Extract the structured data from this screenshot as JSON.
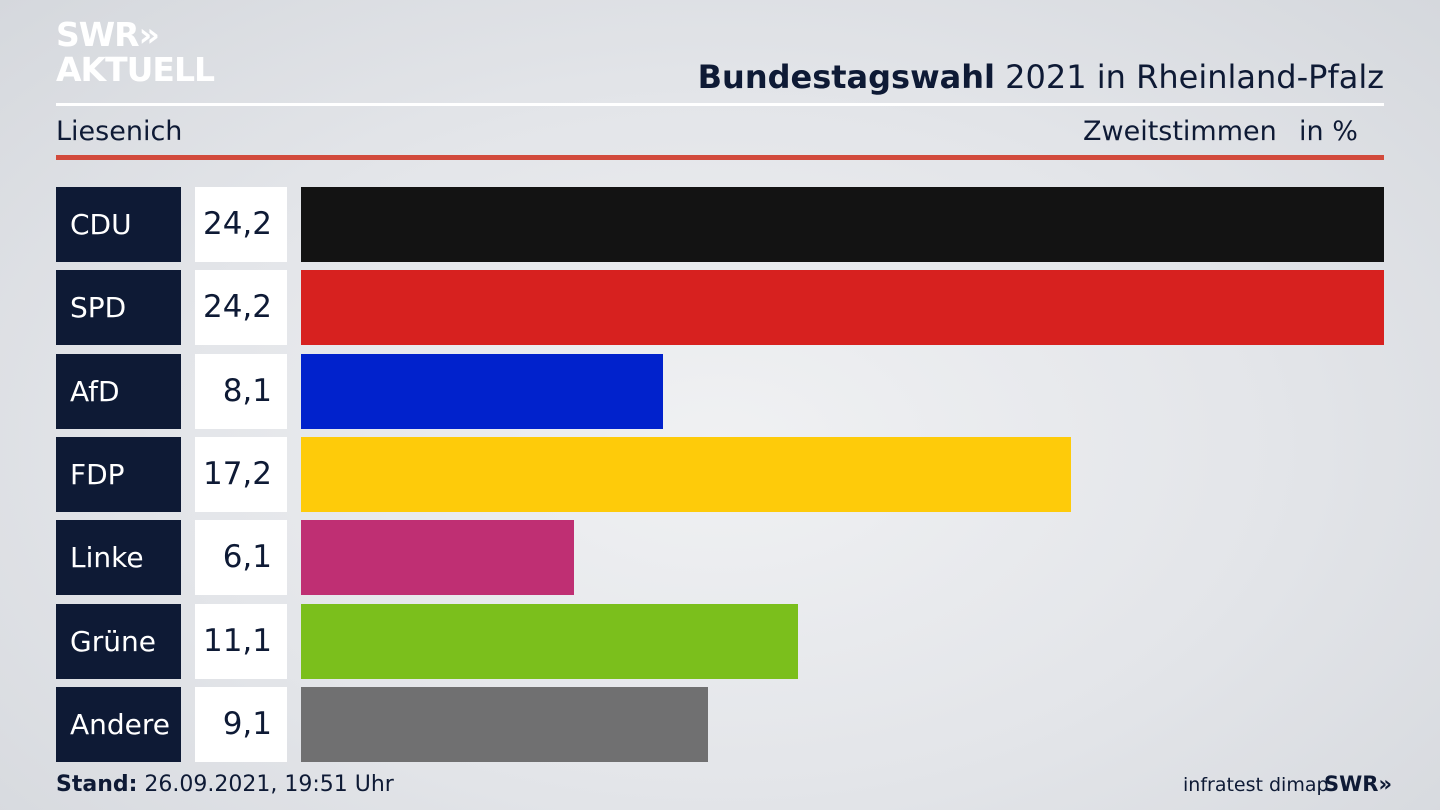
{
  "logo": {
    "line1": "SWR»",
    "line2": "AKTUELL"
  },
  "header": {
    "title_bold": "Bundestagswahl",
    "title_rest": " 2021 in Rheinland-Pfalz",
    "region": "Liesenich",
    "measure": "Zweitstimmen",
    "unit": "in %"
  },
  "colors": {
    "navy": "#0e1a35",
    "accent_rule": "#d24a3c"
  },
  "chart_data": {
    "type": "bar",
    "orientation": "horizontal",
    "title": "Bundestagswahl 2021 in Rheinland-Pfalz",
    "xlabel": "",
    "ylabel": "",
    "xlim": [
      0,
      24.2
    ],
    "categories": [
      "CDU",
      "SPD",
      "AfD",
      "FDP",
      "Linke",
      "Grüne",
      "Andere"
    ],
    "values": [
      24.2,
      24.2,
      8.1,
      17.2,
      6.1,
      11.1,
      9.1
    ],
    "labels": [
      "24,2",
      "24,2",
      "8,1",
      "17,2",
      "6,1",
      "11,1",
      "9,1"
    ],
    "bar_colors": [
      "#131313",
      "#d7211f",
      "#0122cc",
      "#fecb0a",
      "#bf2f73",
      "#7bbf1c",
      "#707071"
    ]
  },
  "footer": {
    "stand_label": "Stand:",
    "stand_value": " 26.09.2021, 19:51 Uhr",
    "source": "infratest dimap",
    "broadcaster": "SWR»"
  }
}
